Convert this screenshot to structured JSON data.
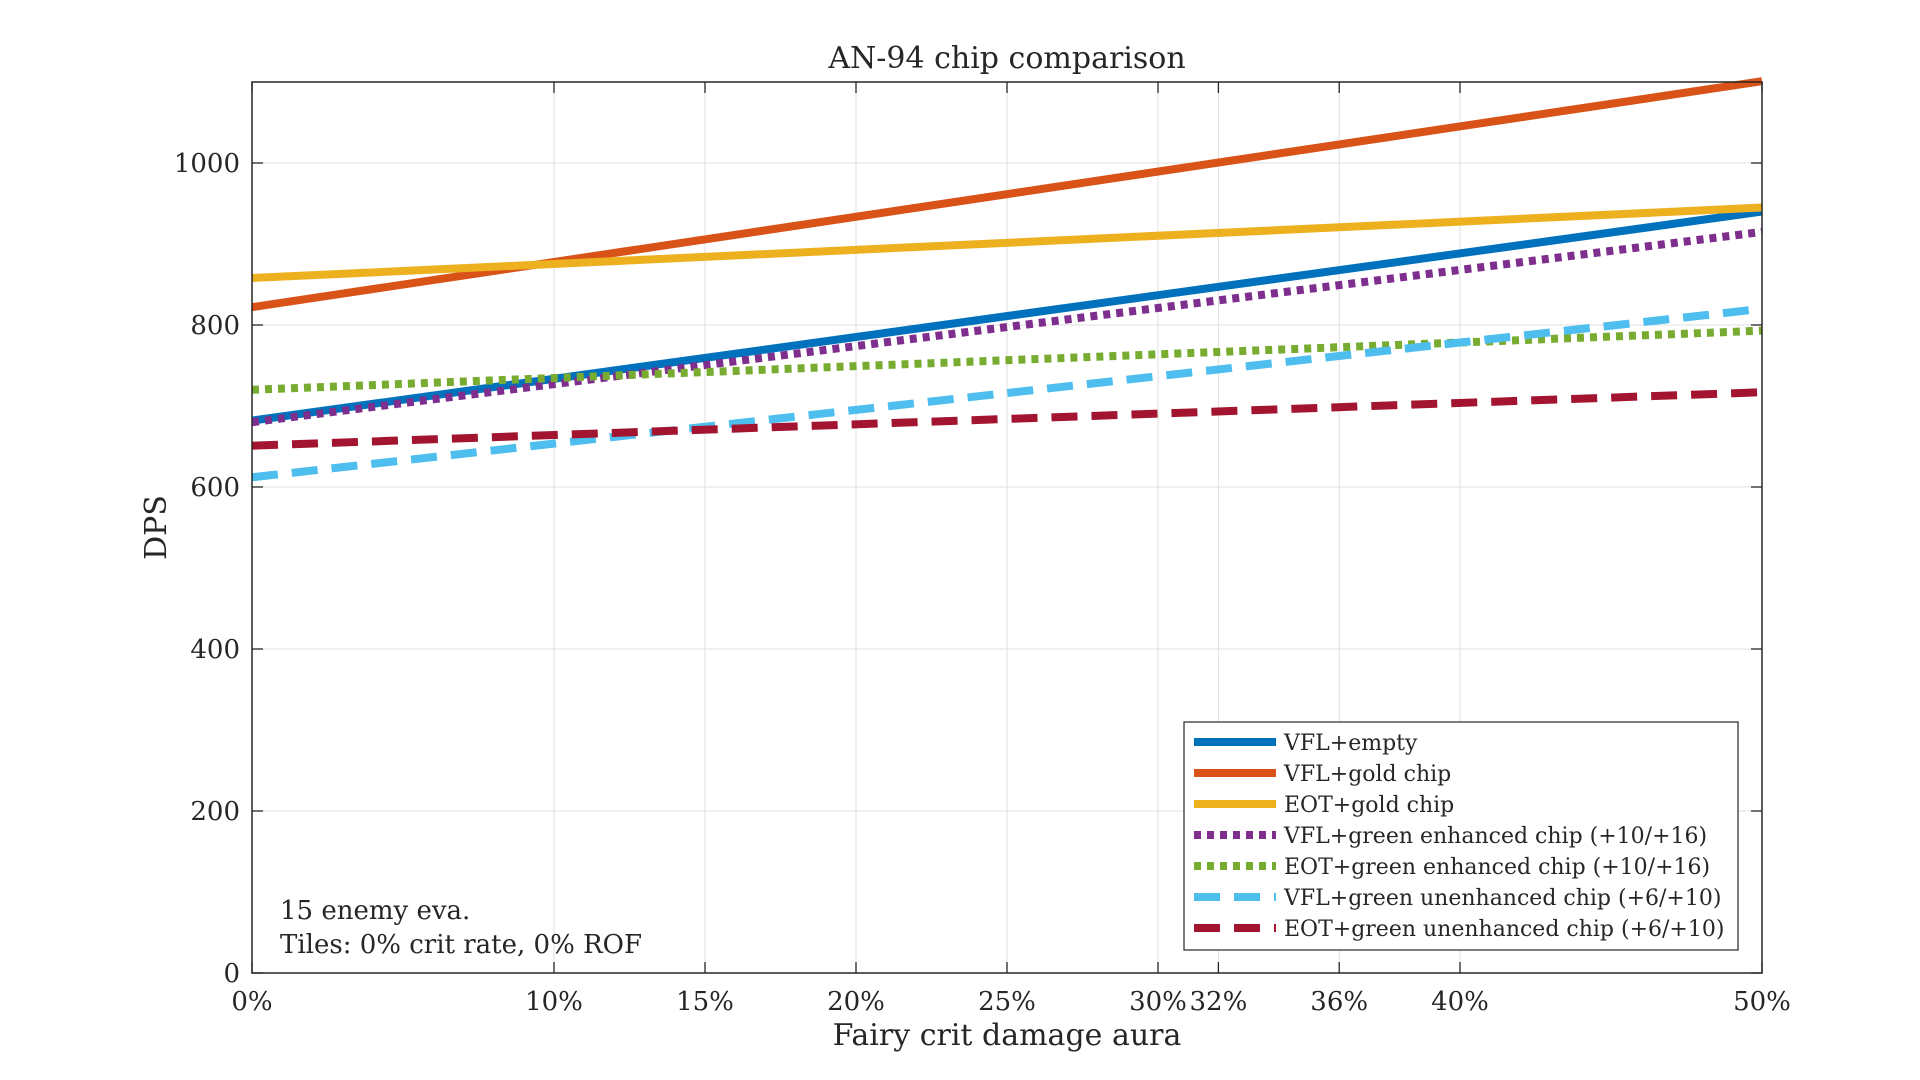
{
  "chart_data": {
    "type": "line",
    "title": "AN-94 chip comparison",
    "xlabel": "Fairy crit damage aura",
    "ylabel": "DPS",
    "xlim": [
      0,
      50
    ],
    "ylim": [
      0,
      1100
    ],
    "x_ticks": [
      0,
      10,
      15,
      20,
      25,
      30,
      32,
      36,
      40,
      50
    ],
    "x_tick_labels": [
      "0%",
      "10%",
      "15%",
      "20%",
      "25%",
      "30%",
      "32%",
      "36%",
      "40%",
      "50%"
    ],
    "y_ticks": [
      0,
      200,
      400,
      600,
      800,
      1000
    ],
    "y_tick_labels": [
      "0",
      "200",
      "400",
      "600",
      "800",
      "1000"
    ],
    "grid": true,
    "legend_position": "bottom-right",
    "annotation": [
      "15 enemy eva.",
      "Tiles: 0% crit rate, 0% ROF"
    ],
    "series": [
      {
        "name": "VFL+empty",
        "x": [
          0,
          50
        ],
        "y": [
          682,
          940
        ],
        "color": "#0072BD",
        "style": "solid"
      },
      {
        "name": "VFL+gold chip",
        "x": [
          0,
          50
        ],
        "y": [
          822,
          1101
        ],
        "color": "#D95319",
        "style": "solid"
      },
      {
        "name": "EOT+gold chip",
        "x": [
          0,
          50
        ],
        "y": [
          858,
          945
        ],
        "color": "#EDB120",
        "style": "solid"
      },
      {
        "name": "VFL+green enhanced chip (+10/+16)",
        "x": [
          0,
          50
        ],
        "y": [
          680,
          915
        ],
        "color": "#7E2F8E",
        "style": "dotted"
      },
      {
        "name": "EOT+green enhanced chip (+10/+16)",
        "x": [
          0,
          50
        ],
        "y": [
          720,
          793
        ],
        "color": "#77AC30",
        "style": "dotted"
      },
      {
        "name": "VFL+green unenhanced chip (+6/+10)",
        "x": [
          0,
          50
        ],
        "y": [
          612,
          820
        ],
        "color": "#4DBEEE",
        "style": "dashed"
      },
      {
        "name": "EOT+green unenhanced chip (+6/+10)",
        "x": [
          0,
          50
        ],
        "y": [
          651,
          717
        ],
        "color": "#A2142F",
        "style": "dashed"
      }
    ]
  }
}
